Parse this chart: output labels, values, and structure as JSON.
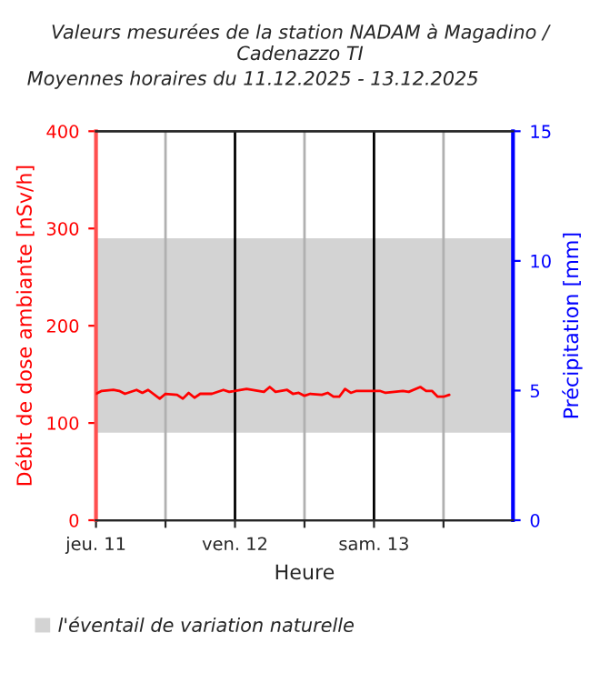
{
  "chart_data": {
    "type": "line",
    "title": "Valeurs mesurées de la station NADAM à Magadino / Cadenazzo TI",
    "subtitle": "Moyennes horaires du 11.12.2025 - 13.12.2025",
    "xlabel": "Heure",
    "ylabel": "Débit de dose ambiante [nSv/h]",
    "y2label": "Précipitation [mm]",
    "x": [
      "2025-12-11T00:00",
      "2025-12-11T01:00",
      "2025-12-11T03:00",
      "2025-12-11T04:00",
      "2025-12-11T05:00",
      "2025-12-11T07:00",
      "2025-12-11T08:00",
      "2025-12-11T09:00",
      "2025-12-11T11:00",
      "2025-12-11T12:00",
      "2025-12-11T14:00",
      "2025-12-11T15:00",
      "2025-12-11T16:00",
      "2025-12-11T17:00",
      "2025-12-11T18:00",
      "2025-12-11T20:00",
      "2025-12-11T22:00",
      "2025-12-11T23:00",
      "2025-12-12T02:00",
      "2025-12-12T05:00",
      "2025-12-12T06:00",
      "2025-12-12T07:00",
      "2025-12-12T09:00",
      "2025-12-12T10:00",
      "2025-12-12T11:00",
      "2025-12-12T12:00",
      "2025-12-12T13:00",
      "2025-12-12T15:00",
      "2025-12-12T16:00",
      "2025-12-12T17:00",
      "2025-12-12T18:00",
      "2025-12-12T19:00",
      "2025-12-12T20:00",
      "2025-12-12T21:00",
      "2025-12-13T01:00",
      "2025-12-13T02:00",
      "2025-12-13T05:00",
      "2025-12-13T06:00",
      "2025-12-13T08:00",
      "2025-12-13T09:00",
      "2025-12-13T10:00",
      "2025-12-13T11:00",
      "2025-12-13T12:00",
      "2025-12-13T13:00"
    ],
    "series": [
      {
        "color": "#ff0000",
        "values": [
          130,
          133,
          134,
          133,
          130,
          134,
          131,
          134,
          125,
          130,
          129,
          125,
          131,
          126,
          130,
          130,
          134,
          132,
          135,
          132,
          137,
          132,
          134,
          130,
          131,
          128,
          130,
          129,
          131,
          127,
          127,
          135,
          131,
          133,
          133,
          131,
          133,
          132,
          137,
          133,
          133,
          127,
          127,
          129
        ]
      }
    ],
    "xlim": [
      "2025-12-11T00:00",
      "2025-12-14T00:00"
    ],
    "xticks": [
      {
        "value": "2025-12-11T00:00",
        "label": "jeu. 11"
      },
      {
        "value": "2025-12-11T12:00",
        "label": null
      },
      {
        "value": "2025-12-12T00:00",
        "label": "ven. 12"
      },
      {
        "value": "2025-12-12T12:00",
        "label": null
      },
      {
        "value": "2025-12-13T00:00",
        "label": "sam. 13"
      },
      {
        "value": "2025-12-13T12:00",
        "label": null
      }
    ],
    "ylim": [
      0,
      400
    ],
    "yticks": [
      0,
      100,
      200,
      300,
      400
    ],
    "y2lim": [
      0,
      15
    ],
    "y2ticks": [
      0,
      5,
      10,
      15
    ],
    "bands": [
      {
        "axis": "y",
        "from": 90,
        "to": 290,
        "label": "l'éventail de variation naturelle",
        "color": "#d3d3d3"
      }
    ],
    "grid": "x",
    "legend": "bottom",
    "line_style": "solid",
    "marker": "none"
  }
}
